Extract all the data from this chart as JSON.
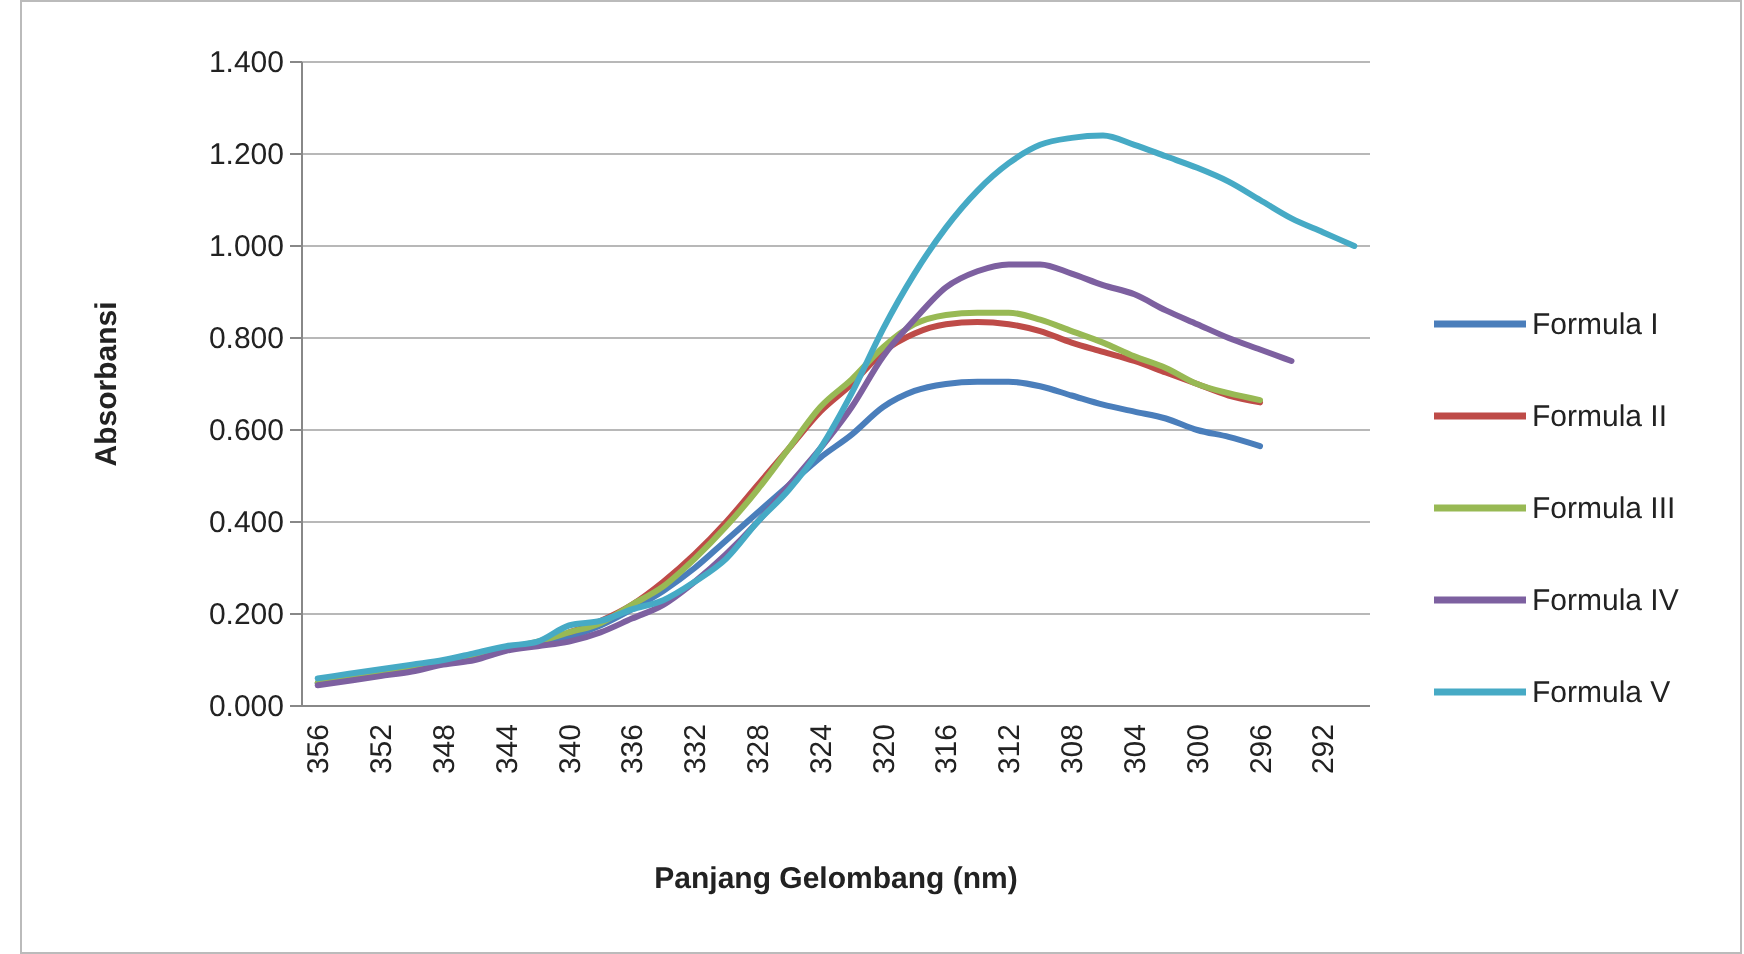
{
  "chart_data": {
    "type": "line",
    "xlabel": "Panjang Gelombang (nm)",
    "ylabel": "Absorbansi",
    "x": [
      356,
      354,
      352,
      350,
      348,
      346,
      344,
      342,
      340,
      338,
      336,
      334,
      332,
      330,
      328,
      326,
      324,
      322,
      320,
      318,
      316,
      314,
      312,
      310,
      308,
      306,
      304,
      302,
      300,
      298,
      296,
      294,
      292,
      290
    ],
    "xlim": [
      357,
      289
    ],
    "xticks": [
      356,
      352,
      348,
      344,
      340,
      336,
      332,
      328,
      324,
      320,
      316,
      312,
      308,
      304,
      300,
      296,
      292
    ],
    "ylim": [
      0,
      1.4
    ],
    "yticks": [
      {
        "value": 0,
        "label": "0.000"
      },
      {
        "value": 0.2,
        "label": "0.200"
      },
      {
        "value": 0.4,
        "label": "0.400"
      },
      {
        "value": 0.6,
        "label": "0.600"
      },
      {
        "value": 0.8,
        "label": "0.800"
      },
      {
        "value": 1.0,
        "label": "1.000"
      },
      {
        "value": 1.2,
        "label": "1.200"
      },
      {
        "value": 1.4,
        "label": "1.400"
      }
    ],
    "grid": "y",
    "legend": "right",
    "marker": "none",
    "line_style": "solid",
    "series": [
      {
        "name": "Formula I",
        "color": "#4a7ebb",
        "values": [
          0.05,
          0.06,
          0.07,
          0.08,
          0.095,
          0.11,
          0.125,
          0.135,
          0.15,
          0.175,
          0.21,
          0.25,
          0.3,
          0.36,
          0.42,
          0.48,
          0.54,
          0.59,
          0.65,
          0.685,
          0.7,
          0.705,
          0.705,
          0.695,
          0.675,
          0.655,
          0.64,
          0.625,
          0.6,
          0.585,
          0.565,
          null,
          null,
          null
        ]
      },
      {
        "name": "Formula II",
        "color": "#be4b48",
        "values": [
          null,
          null,
          null,
          null,
          null,
          null,
          null,
          null,
          0.16,
          0.185,
          0.22,
          0.27,
          0.33,
          0.4,
          0.48,
          0.56,
          0.64,
          0.7,
          0.77,
          0.81,
          0.83,
          0.835,
          0.83,
          0.815,
          0.79,
          0.77,
          0.75,
          0.725,
          0.7,
          0.675,
          0.66,
          null,
          null,
          null
        ]
      },
      {
        "name": "Formula III",
        "color": "#98b954",
        "values": [
          0.05,
          0.06,
          0.07,
          0.08,
          0.095,
          0.11,
          0.125,
          0.14,
          0.16,
          0.18,
          0.22,
          0.26,
          0.32,
          0.39,
          0.47,
          0.56,
          0.65,
          0.71,
          0.78,
          0.83,
          0.85,
          0.855,
          0.855,
          0.84,
          0.815,
          0.79,
          0.76,
          0.735,
          0.7,
          0.68,
          0.665,
          null,
          null,
          null
        ]
      },
      {
        "name": "Formula IV",
        "color": "#7d60a0",
        "values": [
          0.045,
          0.055,
          0.065,
          0.075,
          0.09,
          0.1,
          0.12,
          0.13,
          0.14,
          0.16,
          0.19,
          0.22,
          0.27,
          0.33,
          0.4,
          0.48,
          0.56,
          0.65,
          0.76,
          0.84,
          0.91,
          0.945,
          0.96,
          0.96,
          0.94,
          0.915,
          0.895,
          0.86,
          0.83,
          0.8,
          0.775,
          0.75,
          null,
          null
        ]
      },
      {
        "name": "Formula V",
        "color": "#46aac5",
        "values": [
          0.06,
          0.07,
          0.08,
          0.09,
          0.1,
          0.115,
          0.13,
          0.14,
          0.175,
          0.185,
          0.21,
          0.23,
          0.27,
          0.32,
          0.4,
          0.47,
          0.56,
          0.68,
          0.82,
          0.94,
          1.04,
          1.12,
          1.18,
          1.22,
          1.235,
          1.24,
          1.22,
          1.195,
          1.17,
          1.14,
          1.1,
          1.06,
          1.03,
          1.0
        ]
      }
    ]
  }
}
